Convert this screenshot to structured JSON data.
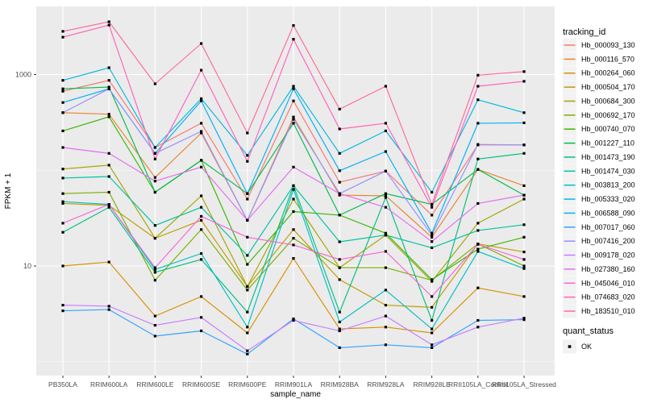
{
  "y_axis": {
    "label": "FPKM + 1",
    "tick_labels": [
      "1000",
      "10"
    ],
    "tick_values": [
      1000,
      10
    ],
    "scale": "log10"
  },
  "x_axis": {
    "label": "sample_name",
    "categories": [
      "PB350LA",
      "RRIM600LA",
      "RRIM600LE",
      "RRIM600SE",
      "RRIM600PE",
      "RRIM901LA",
      "RRIM928BA",
      "RRIM928LA",
      "RRIM928LE",
      "RRII105LA_Control",
      "RRII105LA_Stressed"
    ]
  },
  "legend": {
    "tracking_title": "tracking_id",
    "quant_title": "quant_status",
    "quant_items": [
      {
        "label": "OK",
        "marker_color": "#000000"
      }
    ]
  },
  "panel": {
    "background": "#EBEBEB",
    "gridline_color": "#FFFFFF",
    "point_color": "#000000"
  },
  "chart_data": {
    "type": "line",
    "title": "",
    "xlabel": "sample_name",
    "ylabel": "FPKM + 1",
    "yscale": "log10",
    "ylim": [
      0.7,
      5100
    ],
    "grid": "on",
    "legend_position": "right",
    "x": [
      "PB350LA",
      "RRIM600LA",
      "RRIM600LE",
      "RRIM600SE",
      "RRIM600PE",
      "RRIM901LA",
      "RRIM928BA",
      "RRIM928LA",
      "RRIM928LE",
      "RRII105LA_Control",
      "RRII105LA_Stressed"
    ],
    "series": [
      {
        "name": "Hb_000093_130",
        "color": "#F8766D",
        "values": [
          670,
          870,
          173,
          310,
          50,
          530,
          75,
          98,
          34,
          184,
          184
        ]
      },
      {
        "name": "Hb_000116_570",
        "color": "#EA8331",
        "values": [
          400,
          385,
          84,
          245,
          30,
          360,
          55,
          54,
          20,
          102,
          69
        ]
      },
      {
        "name": "Hb_000264_060",
        "color": "#D89000",
        "values": [
          10,
          11,
          3.0,
          4.8,
          2.0,
          12,
          2.2,
          2.3,
          2.0,
          5.9,
          4.8
        ]
      },
      {
        "name": "Hb_000504_170",
        "color": "#C09B00",
        "values": [
          45,
          43,
          19.5,
          30,
          6.1,
          24,
          7.2,
          3.9,
          3.7,
          17,
          14
        ]
      },
      {
        "name": "Hb_000684_300",
        "color": "#A3A500",
        "values": [
          103,
          113,
          19.5,
          54,
          6.1,
          50,
          9.6,
          21,
          6.9,
          28,
          50
        ]
      },
      {
        "name": "Hb_000692_170",
        "color": "#7CAE00",
        "values": [
          57,
          59,
          7.1,
          24,
          5.6,
          19.5,
          9.6,
          9.6,
          7.1,
          17,
          10
        ]
      },
      {
        "name": "Hb_000740_070",
        "color": "#39B600",
        "values": [
          258,
          362,
          59,
          127,
          10.4,
          37,
          34,
          22,
          7.2,
          15,
          20
        ]
      },
      {
        "name": "Hb_001227_110",
        "color": "#00BB4E",
        "values": [
          710,
          740,
          59,
          127,
          57,
          310,
          34,
          57,
          44,
          102,
          55
        ]
      },
      {
        "name": "Hb_001473_190",
        "color": "#00BF7D",
        "values": [
          22.5,
          41,
          8.6,
          11.7,
          3.3,
          69,
          3.3,
          52,
          2.7,
          131,
          150
        ]
      },
      {
        "name": "Hb_001474_030",
        "color": "#00C1A3",
        "values": [
          83,
          86,
          26.5,
          41,
          12.9,
          69,
          17.9,
          21,
          15.5,
          23.5,
          27
        ]
      },
      {
        "name": "Hb_003813_200",
        "color": "#00BFC4",
        "values": [
          47,
          44,
          9.2,
          13.5,
          2.3,
          63,
          2.6,
          5.6,
          2.2,
          14.2,
          9.4
        ]
      },
      {
        "name": "Hb_005333_020",
        "color": "#00BAE0",
        "values": [
          870,
          1180,
          173,
          560,
          143,
          755,
          150,
          258,
          59,
          545,
          400
        ]
      },
      {
        "name": "Hb_006588_090",
        "color": "#00B0F6",
        "values": [
          510,
          710,
          150,
          530,
          57,
          710,
          99,
          157,
          22,
          310,
          313
        ]
      },
      {
        "name": "Hb_007017_060",
        "color": "#35A2FF",
        "values": [
          3.4,
          3.5,
          1.85,
          2.1,
          1.2,
          2.8,
          1.4,
          1.5,
          1.4,
          2.7,
          2.75
        ]
      },
      {
        "name": "Hb_007416_200",
        "color": "#9590FF",
        "values": [
          400,
          710,
          150,
          255,
          30,
          340,
          57,
          98,
          21,
          186,
          184
        ]
      },
      {
        "name": "Hb_009178_020",
        "color": "#C77CFF",
        "values": [
          3.9,
          3.8,
          2.4,
          2.9,
          1.3,
          2.7,
          2.1,
          3.0,
          1.5,
          2.3,
          2.85
        ]
      },
      {
        "name": "Hb_027380_160",
        "color": "#E76BF3",
        "values": [
          173,
          150,
          77,
          108,
          30,
          108,
          57,
          41,
          18,
          45,
          55
        ]
      },
      {
        "name": "Hb_045046_010",
        "color": "#FA62DB",
        "values": [
          28,
          44,
          9.6,
          33,
          20,
          16.6,
          11.7,
          14.2,
          4.8,
          16.8,
          11.7
        ]
      },
      {
        "name": "Hb_074683_020",
        "color": "#FF62BC",
        "values": [
          2460,
          3290,
          131,
          1110,
          124,
          2340,
          270,
          310,
          41,
          755,
          850
        ]
      },
      {
        "name": "Hb_183510_010",
        "color": "#FF6A98",
        "values": [
          2830,
          3560,
          800,
          2110,
          245,
          3260,
          435,
          755,
          44,
          985,
          1075
        ]
      }
    ],
    "quant_status": {
      "title": "quant_status",
      "values": [
        "OK"
      ]
    }
  }
}
